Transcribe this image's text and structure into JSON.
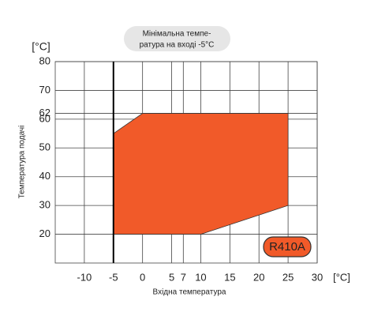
{
  "chart_data": {
    "type": "polygon",
    "y_unit": "[°C]",
    "x_unit": "[°C]",
    "ylabel": "Температура подачі",
    "xlabel": "Вхідна температура",
    "annotation": [
      "Мінімальна темпе-",
      "ратура на вході -5°C"
    ],
    "reference_x": -5,
    "xlim": [
      -15,
      30
    ],
    "xticks": [
      -10,
      -5,
      0,
      5,
      7,
      10,
      15,
      20,
      25,
      30
    ],
    "ylim": [
      10,
      80
    ],
    "yticks": [
      20,
      30,
      40,
      50,
      60,
      62,
      70,
      80
    ],
    "grid": true,
    "series": [
      {
        "name": "R410A",
        "color": "#f15a29",
        "x": [
          -5,
          -5,
          0,
          25,
          25,
          10
        ],
        "values": [
          20,
          55,
          62,
          62,
          30,
          20
        ]
      }
    ]
  }
}
